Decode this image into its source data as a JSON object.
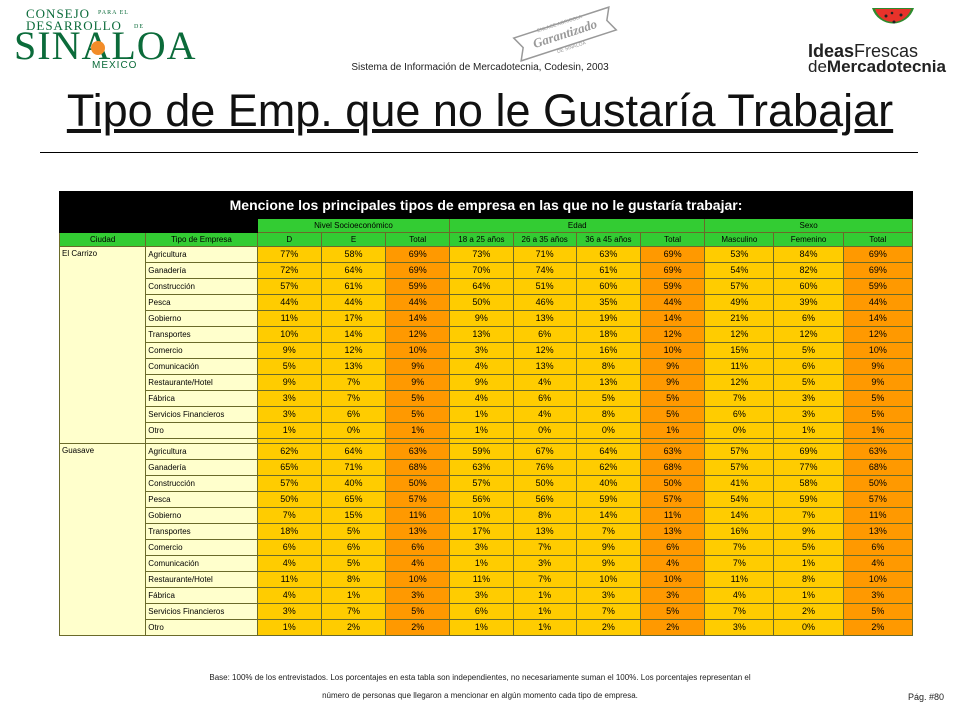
{
  "header": {
    "logo_left": {
      "line1": "CONSEJO",
      "line1b": "PARA EL",
      "line2": "DESARROLLO",
      "line2b": "DE",
      "big": "SINALOA",
      "country": "MEXICO"
    },
    "seal": {
      "top": "ENLACE AGRICOLA",
      "middle": "Garantizado",
      "bottom": "DE SINALOA"
    },
    "subtitle": "Sistema de Información de Mercadotecnia, Codesin, 2003",
    "logo_right": {
      "ideas": "Ideas",
      "frescas": "Frescas",
      "de": "de",
      "mercadotecnia": "Mercadotecnia"
    }
  },
  "title": "Tipo de Emp. que no le Gustaría Trabajar",
  "table": {
    "question": "Mencione los principales tipos de empresa en las que no le gustaría trabajar:",
    "groups": [
      "Nivel Socioeconómico",
      "Edad",
      "Sexo"
    ],
    "headers": [
      "Ciudad",
      "Tipo de Empresa",
      "D",
      "E",
      "Total",
      "18 a 25 años",
      "26 a 35 años",
      "36 a 45 años",
      "Total",
      "Masculino",
      "Femenino",
      "Total"
    ],
    "cities": [
      {
        "name": "El Carrizo",
        "rows": [
          {
            "type": "Agricultura",
            "v": [
              "77%",
              "58%",
              "69%",
              "73%",
              "71%",
              "63%",
              "69%",
              "53%",
              "84%",
              "69%"
            ]
          },
          {
            "type": "Ganadería",
            "v": [
              "72%",
              "64%",
              "69%",
              "70%",
              "74%",
              "61%",
              "69%",
              "54%",
              "82%",
              "69%"
            ]
          },
          {
            "type": "Construcción",
            "v": [
              "57%",
              "61%",
              "59%",
              "64%",
              "51%",
              "60%",
              "59%",
              "57%",
              "60%",
              "59%"
            ]
          },
          {
            "type": "Pesca",
            "v": [
              "44%",
              "44%",
              "44%",
              "50%",
              "46%",
              "35%",
              "44%",
              "49%",
              "39%",
              "44%"
            ]
          },
          {
            "type": "Gobierno",
            "v": [
              "11%",
              "17%",
              "14%",
              "9%",
              "13%",
              "19%",
              "14%",
              "21%",
              "6%",
              "14%"
            ]
          },
          {
            "type": "Transportes",
            "v": [
              "10%",
              "14%",
              "12%",
              "13%",
              "6%",
              "18%",
              "12%",
              "12%",
              "12%",
              "12%"
            ]
          },
          {
            "type": "Comercio",
            "v": [
              "9%",
              "12%",
              "10%",
              "3%",
              "12%",
              "16%",
              "10%",
              "15%",
              "5%",
              "10%"
            ]
          },
          {
            "type": "Comunicación",
            "v": [
              "5%",
              "13%",
              "9%",
              "4%",
              "13%",
              "8%",
              "9%",
              "11%",
              "6%",
              "9%"
            ]
          },
          {
            "type": "Restaurante/Hotel",
            "v": [
              "9%",
              "7%",
              "9%",
              "9%",
              "4%",
              "13%",
              "9%",
              "12%",
              "5%",
              "9%"
            ]
          },
          {
            "type": "Fábrica",
            "v": [
              "3%",
              "7%",
              "5%",
              "4%",
              "6%",
              "5%",
              "5%",
              "7%",
              "3%",
              "5%"
            ]
          },
          {
            "type": "Servicios Financieros",
            "v": [
              "3%",
              "6%",
              "5%",
              "1%",
              "4%",
              "8%",
              "5%",
              "6%",
              "3%",
              "5%"
            ]
          },
          {
            "type": "Otro",
            "v": [
              "1%",
              "0%",
              "1%",
              "1%",
              "0%",
              "0%",
              "1%",
              "0%",
              "1%",
              "1%"
            ]
          }
        ]
      },
      {
        "name": "Guasave",
        "rows": [
          {
            "type": "Agricultura",
            "v": [
              "62%",
              "64%",
              "63%",
              "59%",
              "67%",
              "64%",
              "63%",
              "57%",
              "69%",
              "63%"
            ]
          },
          {
            "type": "Ganadería",
            "v": [
              "65%",
              "71%",
              "68%",
              "63%",
              "76%",
              "62%",
              "68%",
              "57%",
              "77%",
              "68%"
            ]
          },
          {
            "type": "Construcción",
            "v": [
              "57%",
              "40%",
              "50%",
              "57%",
              "50%",
              "40%",
              "50%",
              "41%",
              "58%",
              "50%"
            ]
          },
          {
            "type": "Pesca",
            "v": [
              "50%",
              "65%",
              "57%",
              "56%",
              "56%",
              "59%",
              "57%",
              "54%",
              "59%",
              "57%"
            ]
          },
          {
            "type": "Gobierno",
            "v": [
              "7%",
              "15%",
              "11%",
              "10%",
              "8%",
              "14%",
              "11%",
              "14%",
              "7%",
              "11%"
            ]
          },
          {
            "type": "Transportes",
            "v": [
              "18%",
              "5%",
              "13%",
              "17%",
              "13%",
              "7%",
              "13%",
              "16%",
              "9%",
              "13%"
            ]
          },
          {
            "type": "Comercio",
            "v": [
              "6%",
              "6%",
              "6%",
              "3%",
              "7%",
              "9%",
              "6%",
              "7%",
              "5%",
              "6%"
            ]
          },
          {
            "type": "Comunicación",
            "v": [
              "4%",
              "5%",
              "4%",
              "1%",
              "3%",
              "9%",
              "4%",
              "7%",
              "1%",
              "4%"
            ]
          },
          {
            "type": "Restaurante/Hotel",
            "v": [
              "11%",
              "8%",
              "10%",
              "11%",
              "7%",
              "10%",
              "10%",
              "11%",
              "8%",
              "10%"
            ]
          },
          {
            "type": "Fábrica",
            "v": [
              "4%",
              "1%",
              "3%",
              "3%",
              "1%",
              "3%",
              "3%",
              "4%",
              "1%",
              "3%"
            ]
          },
          {
            "type": "Servicios Financieros",
            "v": [
              "3%",
              "7%",
              "5%",
              "6%",
              "1%",
              "7%",
              "5%",
              "7%",
              "2%",
              "5%"
            ]
          },
          {
            "type": "Otro",
            "v": [
              "1%",
              "2%",
              "2%",
              "1%",
              "1%",
              "2%",
              "2%",
              "3%",
              "0%",
              "2%"
            ]
          }
        ]
      }
    ]
  },
  "footnote": {
    "line1": "Base: 100% de los entrevistados. Los porcentajes en esta tabla son independientes, no necesariamente suman el 100%. Los porcentajes representan el",
    "line2": "número de personas que llegaron a mencionar en algún momento cada tipo de empresa."
  },
  "page": "Pág. #80",
  "colors": {
    "green_header": "#33cc33",
    "cell_yellow": "#ffcc00",
    "cell_orange": "#ff9900",
    "label_cream": "#ffffcc",
    "logo_green": "#0b6b3a",
    "watermelon_red": "#e8322a"
  }
}
